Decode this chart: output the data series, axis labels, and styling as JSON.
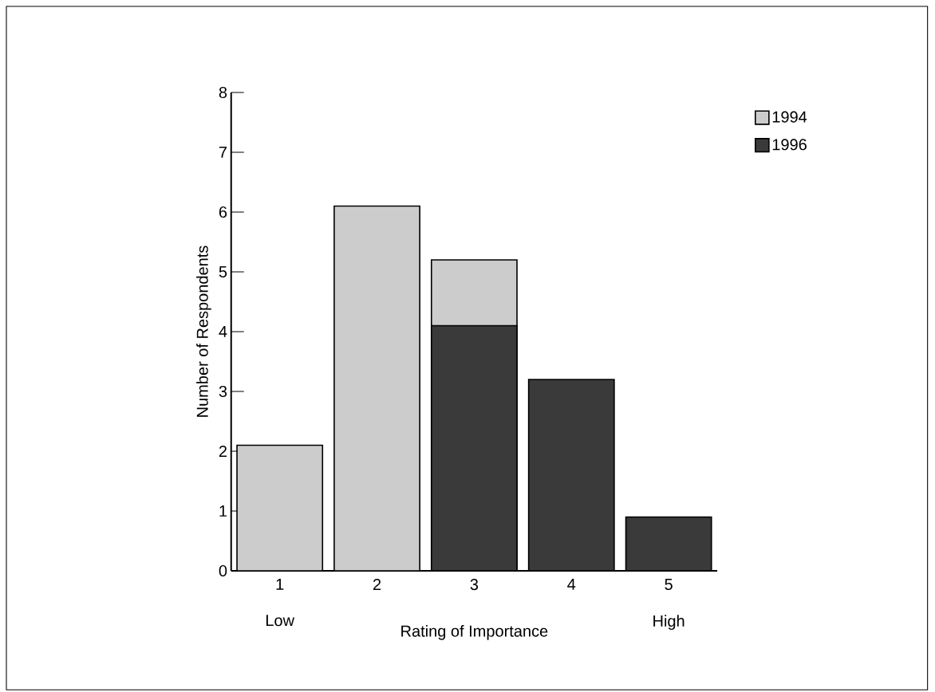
{
  "chart_data": {
    "type": "bar",
    "xlabel": "Rating of Importance",
    "ylabel": "Number of Respondents",
    "categories": [
      "1",
      "2",
      "3",
      "4",
      "5"
    ],
    "series": [
      {
        "name": "1994",
        "color": "#cccccc",
        "values": [
          2.1,
          6.1,
          5.2,
          null,
          null
        ]
      },
      {
        "name": "1996",
        "color": "#3a3a3a",
        "values": [
          null,
          null,
          4.1,
          3.2,
          0.9
        ]
      }
    ],
    "ylim": [
      0,
      8
    ],
    "yticks": [
      0,
      1,
      2,
      3,
      4,
      5,
      6,
      7,
      8
    ],
    "annotations": [
      "Low",
      "High"
    ],
    "legend": "top right",
    "grid": false
  }
}
